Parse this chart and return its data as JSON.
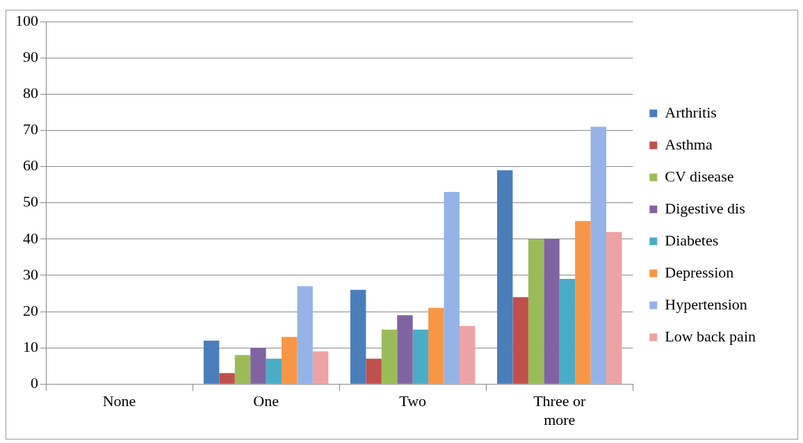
{
  "chart_data": {
    "type": "bar",
    "categories": [
      "None",
      "One",
      "Two",
      "Three or\nmore"
    ],
    "series": [
      {
        "name": "Arthritis",
        "color": "#4a7ebb",
        "values": [
          0,
          12,
          26,
          59
        ]
      },
      {
        "name": "Asthma",
        "color": "#c0504d",
        "values": [
          0,
          3,
          7,
          24
        ]
      },
      {
        "name": "CV disease",
        "color": "#9bbb59",
        "values": [
          0,
          8,
          15,
          40
        ]
      },
      {
        "name": "Digestive dis",
        "color": "#8064a2",
        "values": [
          0,
          10,
          19,
          40
        ]
      },
      {
        "name": "Diabetes",
        "color": "#4bacc6",
        "values": [
          0,
          7,
          15,
          29
        ]
      },
      {
        "name": "Depression",
        "color": "#f79646",
        "values": [
          0,
          13,
          21,
          45
        ]
      },
      {
        "name": "Hypertension",
        "color": "#95b3e7",
        "values": [
          0,
          27,
          53,
          71
        ]
      },
      {
        "name": "Low back pain",
        "color": "#eda3a3",
        "values": [
          0,
          9,
          16,
          42
        ]
      }
    ],
    "ylim": [
      0,
      100
    ],
    "yticks": [
      0,
      10,
      20,
      30,
      40,
      50,
      60,
      70,
      80,
      90,
      100
    ],
    "grid": "y",
    "legend": "right"
  }
}
